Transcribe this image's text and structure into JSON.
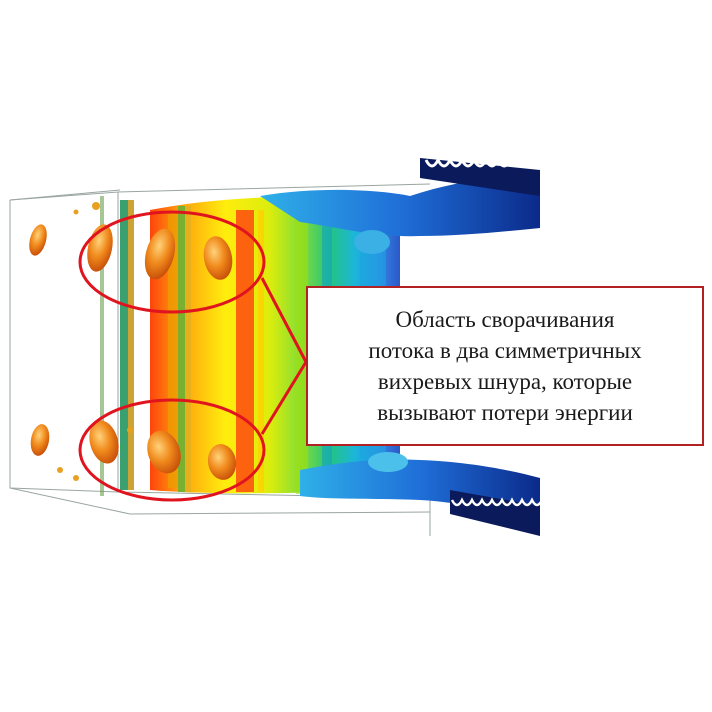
{
  "annotation": {
    "lines": [
      "Область сворачивания",
      "потока в два симметричных",
      "вихревых шнура, которые",
      "вызывают потери энергии"
    ],
    "border_color": "#b22222"
  },
  "highlight_color": "#e0141e",
  "colormap": [
    "#ff2a00",
    "#ff8a00",
    "#ffee00",
    "#a8e000",
    "#22cc55",
    "#00bcd4",
    "#1e6fe0",
    "#102a8c"
  ]
}
